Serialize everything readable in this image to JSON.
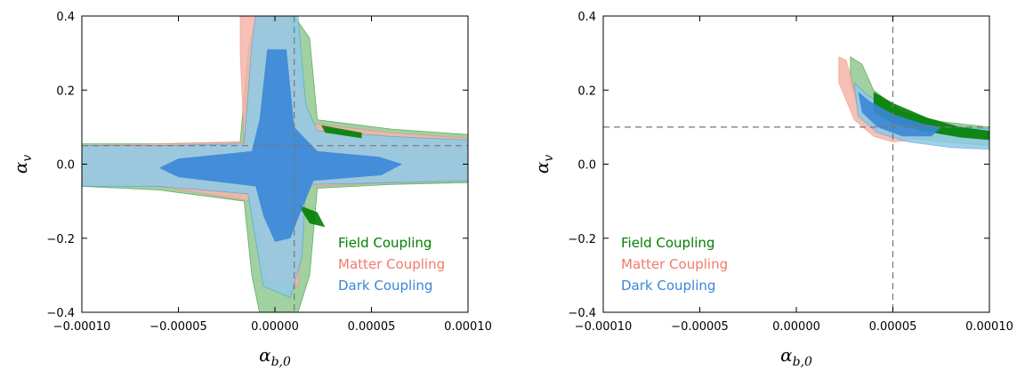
{
  "chart_data": [
    {
      "type": "contour",
      "xlabel": "α_b,0",
      "xlabel_main": "α",
      "xlabel_sub": "b,0",
      "ylabel": "α_v",
      "ylabel_main": "α",
      "ylabel_sub": "v",
      "xlim": [
        -0.0001,
        0.0001
      ],
      "ylim": [
        -0.4,
        0.4
      ],
      "xticks": [
        -0.0001,
        -5e-05,
        0,
        5e-05,
        0.0001
      ],
      "xtick_labels": [
        "−0.00010",
        "−0.00005",
        "0.00000",
        "0.00005",
        "0.00010"
      ],
      "yticks": [
        -0.4,
        -0.2,
        0,
        0.2,
        0.4
      ],
      "ytick_labels": [
        "−0.4",
        "−0.2",
        "0.0",
        "0.2",
        "0.4"
      ],
      "reference_lines": {
        "x": 1e-05,
        "y": 0.05
      },
      "legend_position": "lower-right",
      "series": [
        {
          "name": "Field Coupling",
          "color": "#008000",
          "light_color": "#90c890",
          "regions": [
            {
              "level": "outer",
              "points": [
                [
                  -1e-05,
                  0.4
                ],
                [
                  1e-05,
                  0.4
                ],
                [
                  1.8e-05,
                  0.34
                ],
                [
                  2.2e-05,
                  0.12
                ],
                [
                  6e-05,
                  0.095
                ],
                [
                  0.0001,
                  0.08
                ],
                [
                  0.0001,
                  -0.05
                ],
                [
                  6e-05,
                  -0.055
                ],
                [
                  2.2e-05,
                  -0.065
                ],
                [
                  1.8e-05,
                  -0.3
                ],
                [
                  1.2e-05,
                  -0.4
                ],
                [
                  -8e-06,
                  -0.4
                ],
                [
                  -1.2e-05,
                  -0.3
                ],
                [
                  -1.6e-05,
                  -0.1
                ],
                [
                  -6e-05,
                  -0.07
                ],
                [
                  -0.0001,
                  -0.06
                ],
                [
                  -0.0001,
                  0.055
                ],
                [
                  -6e-05,
                  0.055
                ],
                [
                  -1.8e-05,
                  0.06
                ],
                [
                  -1.4e-05,
                  0.3
                ]
              ]
            },
            {
              "level": "inner",
              "points": [
                [
                  2.4e-05,
                  0.105
                ],
                [
                  4.5e-05,
                  0.085
                ],
                [
                  4.5e-05,
                  0.07
                ],
                [
                  2.6e-05,
                  0.085
                ]
              ]
            },
            {
              "level": "inner",
              "points": [
                [
                  1.2e-05,
                  -0.11
                ],
                [
                  2.2e-05,
                  -0.13
                ],
                [
                  2.6e-05,
                  -0.17
                ],
                [
                  1.8e-05,
                  -0.16
                ]
              ]
            }
          ]
        },
        {
          "name": "Matter Coupling",
          "color": "#f07a6a",
          "light_color": "#f5b5aa",
          "regions": [
            {
              "level": "outer",
              "points": [
                [
                  -1.8e-05,
                  0.4
                ],
                [
                  8e-06,
                  0.4
                ],
                [
                  1.2e-05,
                  0.25
                ],
                [
                  1.8e-05,
                  0.11
                ],
                [
                  6e-05,
                  0.085
                ],
                [
                  0.0001,
                  0.07
                ],
                [
                  0.0001,
                  -0.045
                ],
                [
                  6e-05,
                  -0.05
                ],
                [
                  1.6e-05,
                  -0.06
                ],
                [
                  1.2e-05,
                  -0.33
                ],
                [
                  -4e-06,
                  -0.32
                ],
                [
                  -1.2e-05,
                  -0.1
                ],
                [
                  -6e-05,
                  -0.06
                ],
                [
                  -0.0001,
                  -0.05
                ],
                [
                  -0.0001,
                  0.05
                ],
                [
                  -6e-05,
                  0.055
                ],
                [
                  -1.6e-05,
                  0.06
                ],
                [
                  -1.8e-05,
                  0.3
                ]
              ]
            }
          ]
        },
        {
          "name": "Dark Coupling",
          "color": "#3a86d8",
          "light_color": "#8ecae6",
          "regions": [
            {
              "level": "outer",
              "points": [
                [
                  -1e-05,
                  0.4
                ],
                [
                  1.2e-05,
                  0.4
                ],
                [
                  1.6e-05,
                  0.16
                ],
                [
                  2.2e-05,
                  0.09
                ],
                [
                  6e-05,
                  0.075
                ],
                [
                  0.0001,
                  0.065
                ],
                [
                  0.0001,
                  -0.045
                ],
                [
                  6e-05,
                  -0.05
                ],
                [
                  1.6e-05,
                  -0.055
                ],
                [
                  1.4e-05,
                  -0.25
                ],
                [
                  8e-06,
                  -0.36
                ],
                [
                  -6e-06,
                  -0.33
                ],
                [
                  -1.4e-05,
                  -0.08
                ],
                [
                  -6e-05,
                  -0.06
                ],
                [
                  -0.0001,
                  -0.06
                ],
                [
                  -0.0001,
                  0.05
                ],
                [
                  -6e-05,
                  0.05
                ],
                [
                  -1.6e-05,
                  0.055
                ],
                [
                  -1.2e-05,
                  0.32
                ]
              ]
            },
            {
              "level": "inner",
              "points": [
                [
                  -4e-06,
                  0.31
                ],
                [
                  6e-06,
                  0.31
                ],
                [
                  1e-05,
                  0.1
                ],
                [
                  2.2e-05,
                  0.035
                ],
                [
                  5.4e-05,
                  0.02
                ],
                [
                  6.6e-05,
                  0
                ],
                [
                  5.5e-05,
                  -0.03
                ],
                [
                  2e-05,
                  -0.045
                ],
                [
                  1.4e-05,
                  -0.12
                ],
                [
                  8e-06,
                  -0.2
                ],
                [
                  0,
                  -0.21
                ],
                [
                  -6e-06,
                  -0.14
                ],
                [
                  -1e-05,
                  -0.06
                ],
                [
                  -5e-05,
                  -0.035
                ],
                [
                  -6e-05,
                  -0.01
                ],
                [
                  -5e-05,
                  0.015
                ],
                [
                  -1.2e-05,
                  0.035
                ],
                [
                  -8e-06,
                  0.12
                ]
              ]
            }
          ]
        }
      ]
    },
    {
      "type": "contour",
      "xlabel": "α_b,0",
      "xlabel_main": "α",
      "xlabel_sub": "b,0",
      "ylabel": "α_v",
      "ylabel_main": "α",
      "ylabel_sub": "v",
      "xlim": [
        -0.0001,
        0.0001
      ],
      "ylim": [
        -0.4,
        0.4
      ],
      "xticks": [
        -0.0001,
        -5e-05,
        0,
        5e-05,
        0.0001
      ],
      "xtick_labels": [
        "−0.00010",
        "−0.00005",
        "0.00000",
        "0.00005",
        "0.00010"
      ],
      "yticks": [
        -0.4,
        -0.2,
        0,
        0.2,
        0.4
      ],
      "ytick_labels": [
        "−0.4",
        "−0.2",
        "0.0",
        "0.2",
        "0.4"
      ],
      "reference_lines": {
        "x": 5e-05,
        "y": 0.1
      },
      "legend_position": "lower-left",
      "series": [
        {
          "name": "Field Coupling",
          "color": "#008000",
          "light_color": "#90c890",
          "regions": [
            {
              "level": "outer",
              "points": [
                [
                  2.8e-05,
                  0.29
                ],
                [
                  3.4e-05,
                  0.27
                ],
                [
                  4e-05,
                  0.2
                ],
                [
                  5.5e-05,
                  0.14
                ],
                [
                  7.5e-05,
                  0.115
                ],
                [
                  0.0001,
                  0.1
                ],
                [
                  0.0001,
                  0.05
                ],
                [
                  8e-05,
                  0.058
                ],
                [
                  5.5e-05,
                  0.072
                ],
                [
                  4e-05,
                  0.1
                ],
                [
                  3.2e-05,
                  0.15
                ],
                [
                  2.8e-05,
                  0.22
                ]
              ]
            },
            {
              "level": "inner",
              "points": [
                [
                  4e-05,
                  0.195
                ],
                [
                  5e-05,
                  0.165
                ],
                [
                  6.8e-05,
                  0.125
                ],
                [
                  8.5e-05,
                  0.1
                ],
                [
                  0.0001,
                  0.09
                ],
                [
                  0.0001,
                  0.065
                ],
                [
                  8.5e-05,
                  0.072
                ],
                [
                  6.5e-05,
                  0.09
                ],
                [
                  5e-05,
                  0.11
                ],
                [
                  4e-05,
                  0.14
                ]
              ]
            }
          ]
        },
        {
          "name": "Matter Coupling",
          "color": "#f07a6a",
          "light_color": "#f5b5aa",
          "regions": [
            {
              "level": "outer",
              "points": [
                [
                  2.2e-05,
                  0.29
                ],
                [
                  2.6e-05,
                  0.28
                ],
                [
                  3e-05,
                  0.2
                ],
                [
                  4e-05,
                  0.15
                ],
                [
                  5.5e-05,
                  0.115
                ],
                [
                  6.5e-05,
                  0.085
                ],
                [
                  6e-05,
                  0.065
                ],
                [
                  5e-05,
                  0.06
                ],
                [
                  4e-05,
                  0.075
                ],
                [
                  3e-05,
                  0.12
                ],
                [
                  2.2e-05,
                  0.22
                ]
              ]
            }
          ]
        },
        {
          "name": "Dark Coupling",
          "color": "#3a86d8",
          "light_color": "#8ecae6",
          "regions": [
            {
              "level": "outer",
              "points": [
                [
                  3e-05,
                  0.22
                ],
                [
                  3.6e-05,
                  0.19
                ],
                [
                  4.8e-05,
                  0.15
                ],
                [
                  7e-05,
                  0.115
                ],
                [
                  8.5e-05,
                  0.1
                ],
                [
                  0.0001,
                  0.095
                ],
                [
                  0.0001,
                  0.04
                ],
                [
                  8e-05,
                  0.045
                ],
                [
                  5.8e-05,
                  0.06
                ],
                [
                  4.2e-05,
                  0.085
                ],
                [
                  3.2e-05,
                  0.13
                ]
              ]
            },
            {
              "level": "inner",
              "points": [
                [
                  3.2e-05,
                  0.195
                ],
                [
                  3.8e-05,
                  0.17
                ],
                [
                  5e-05,
                  0.135
                ],
                [
                  6.5e-05,
                  0.11
                ],
                [
                  7.5e-05,
                  0.1
                ],
                [
                  7e-05,
                  0.075
                ],
                [
                  5.5e-05,
                  0.075
                ],
                [
                  4.2e-05,
                  0.1
                ],
                [
                  3.4e-05,
                  0.14
                ]
              ]
            }
          ]
        }
      ]
    }
  ]
}
